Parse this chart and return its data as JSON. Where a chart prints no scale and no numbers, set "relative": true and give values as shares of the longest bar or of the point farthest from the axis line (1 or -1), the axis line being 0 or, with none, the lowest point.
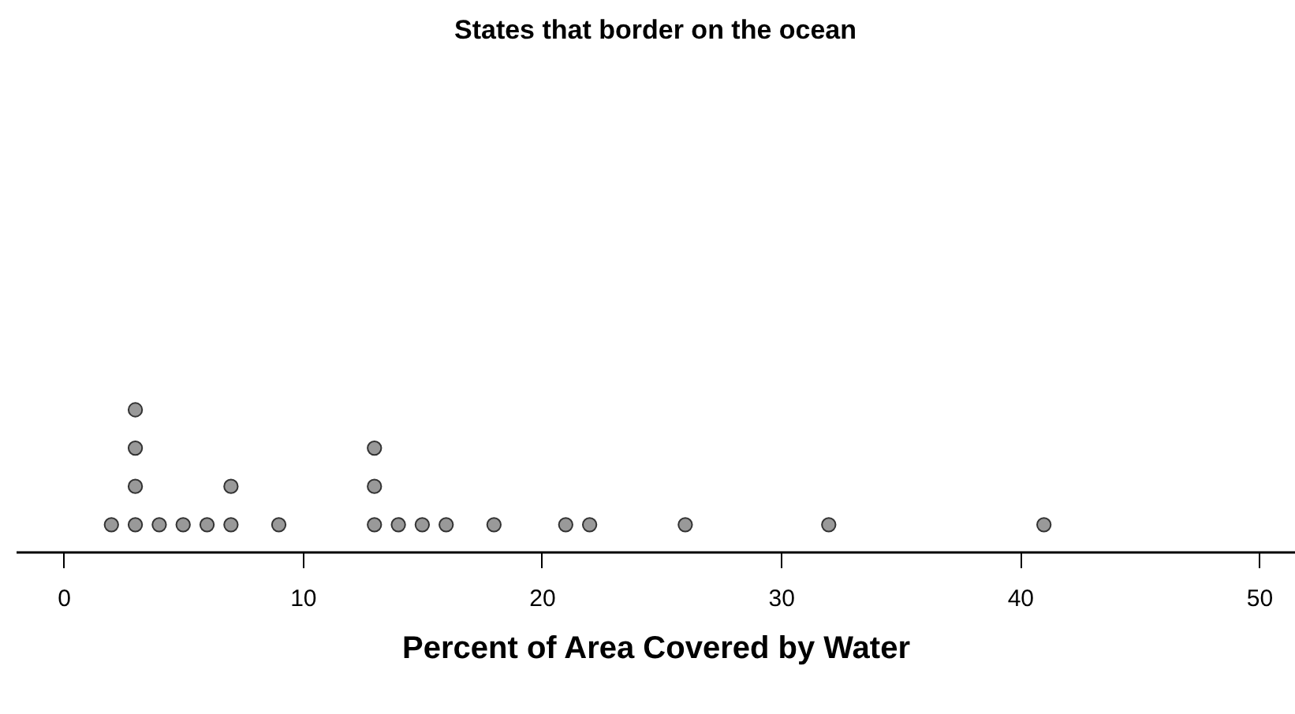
{
  "chart_data": {
    "type": "scatter",
    "title": "States that border on the ocean",
    "xlabel": "Percent of Area Covered by Water",
    "relative": true,
    "marker": "circle",
    "x": [
      2,
      3,
      3,
      3,
      3,
      4,
      5,
      6,
      7,
      7,
      9,
      13,
      13,
      13,
      14,
      15,
      16,
      18,
      21,
      22,
      26,
      32,
      41
    ],
    "series": [
      {
        "color": "#999999",
        "values": [
          0.19,
          0.19,
          0.46,
          0.73,
          1,
          0.19,
          0.19,
          0.19,
          0.19,
          0.46,
          0.19,
          0.19,
          0.46,
          0.73,
          0.19,
          0.19,
          0.19,
          0.19,
          0.19,
          0.19,
          0.19,
          0.19,
          0.19
        ]
      }
    ],
    "xlim": [
      -2,
      51.5
    ],
    "xticks": [
      0,
      10,
      20,
      30,
      40,
      50
    ]
  }
}
